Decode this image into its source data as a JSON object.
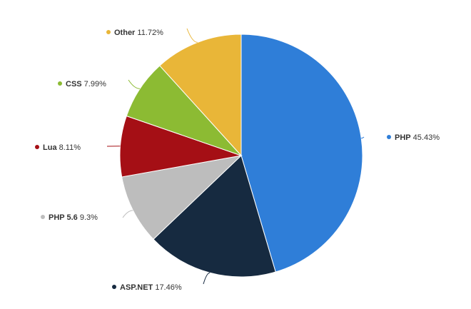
{
  "chart_data": {
    "type": "pie",
    "title": "",
    "legend": "none",
    "slices": [
      {
        "name": "PHP",
        "value": 45.43,
        "value_label": "45.43%",
        "color": "#2f7ed8"
      },
      {
        "name": "ASP.NET",
        "value": 17.46,
        "value_label": "17.46%",
        "color": "#162a40"
      },
      {
        "name": "PHP 5.6",
        "value": 9.3,
        "value_label": "9.3%",
        "color": "#bdbdbd"
      },
      {
        "name": "Lua",
        "value": 8.11,
        "value_label": "8.11%",
        "color": "#a50f15"
      },
      {
        "name": "CSS",
        "value": 7.99,
        "value_label": "7.99%",
        "color": "#8cbb33"
      },
      {
        "name": "Other",
        "value": 11.72,
        "value_label": "11.72%",
        "color": "#e9b638"
      }
    ]
  }
}
